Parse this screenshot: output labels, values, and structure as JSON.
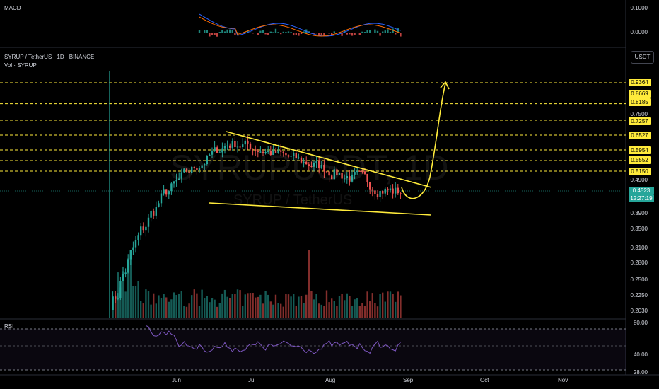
{
  "header": {
    "symbol_line": "SYRUP / TetherUS · 1D · BINANCE",
    "volume_label": "Vol · SYRUP",
    "currency_button": "USDT"
  },
  "watermark": {
    "ticker": "SYRUPUSDT, 1D",
    "name": "SYRUP / TetherUS"
  },
  "panes": {
    "macd": {
      "title": "MACD",
      "axis": [
        "0.1000",
        "0.0000"
      ]
    },
    "rsi": {
      "title": "RSI",
      "axis": [
        "80.00",
        "40.00",
        "28.00"
      ]
    }
  },
  "price_axis": {
    "ticks": [
      "0.7500",
      "0.4900",
      "0.3900",
      "0.3500",
      "0.3100",
      "0.2800",
      "0.2500",
      "0.2250",
      "0.2030"
    ]
  },
  "levels": [
    "0.9364",
    "0.8669",
    "0.8185",
    "0.7257",
    "0.6527",
    "0.5954",
    "0.5552",
    "0.5150"
  ],
  "current_price": {
    "value": "0.4523",
    "countdown": "12:27:19"
  },
  "time_axis": [
    "Jun",
    "Jul",
    "Aug",
    "Sep",
    "Oct",
    "Nov"
  ],
  "colors": {
    "up": "#26a69a",
    "down": "#ef5350",
    "level_line": "#ffeb3b",
    "pattern_line": "#ffeb3b",
    "rsi_line": "#7e57c2",
    "macd_line": "#2962ff",
    "signal_line": "#ff6d00"
  },
  "chart_data": {
    "type": "candlestick",
    "symbol": "SYRUP / TetherUS",
    "timeframe": "1D",
    "exchange": "BINANCE",
    "last_price": 0.4523,
    "resistance_levels": [
      0.9364,
      0.8669,
      0.8185,
      0.7257,
      0.6527,
      0.5954,
      0.5552,
      0.515
    ],
    "pattern": "falling wedge",
    "projection": "breakout above upper trendline toward 0.9364"
  }
}
